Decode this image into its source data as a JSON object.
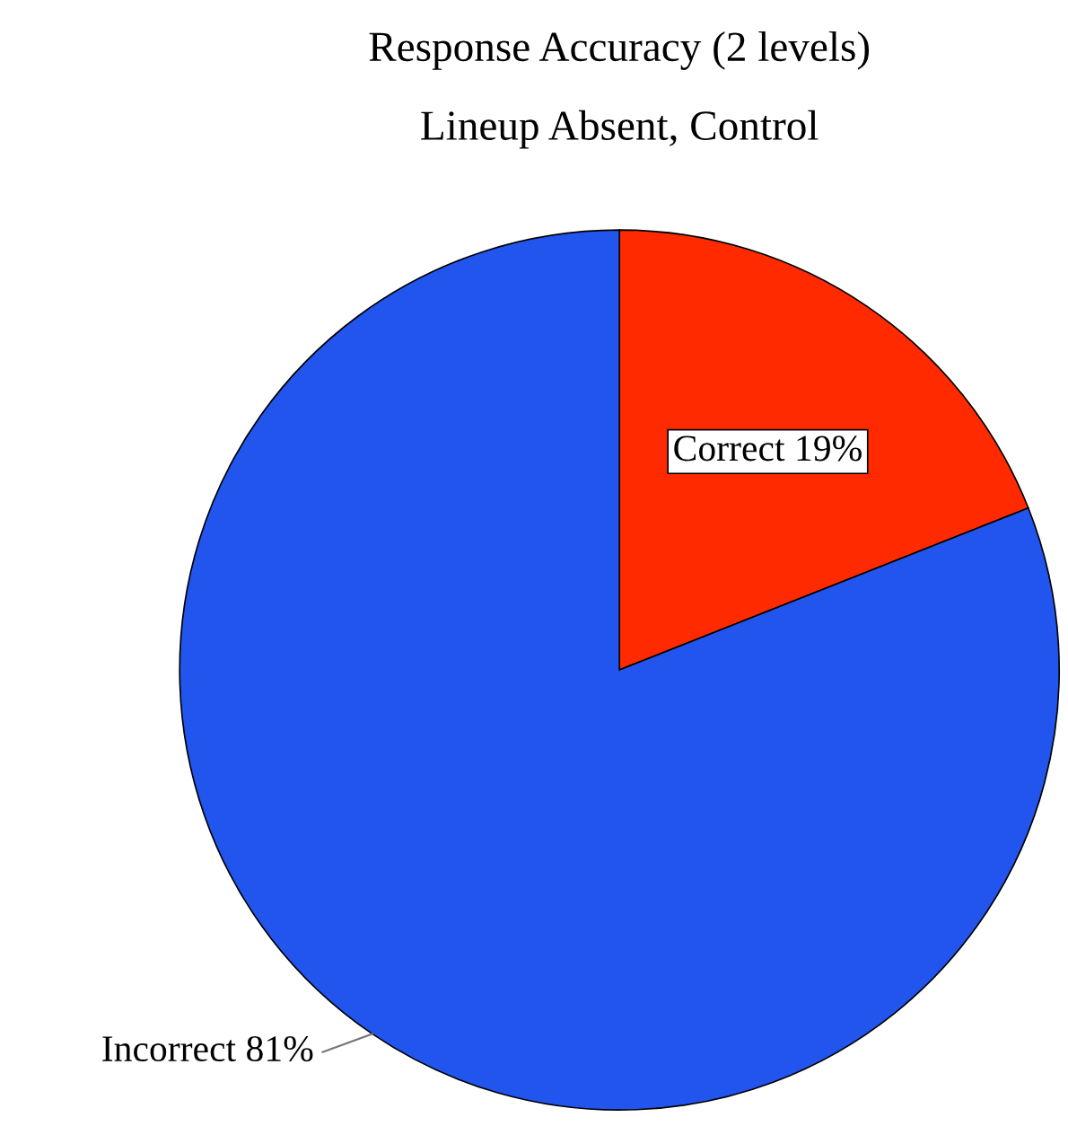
{
  "chart_data": {
    "type": "pie",
    "title": "Response Accuracy (2 levels)",
    "subtitle": "Lineup Absent, Control",
    "categories": [
      "Correct",
      "Incorrect"
    ],
    "values": [
      19,
      81
    ],
    "value_labels": [
      "19%",
      "81%"
    ],
    "colors": [
      "#ff2a00",
      "#2255ee"
    ],
    "legend": false
  }
}
